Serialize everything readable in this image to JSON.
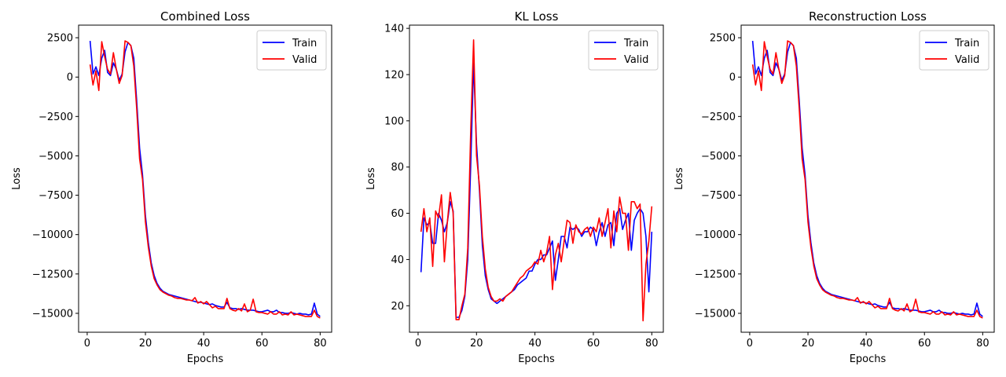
{
  "chart_data": [
    {
      "type": "line",
      "title": "Combined Loss",
      "xlabel": "Epochs",
      "ylabel": "Loss",
      "xlim": [
        -2.95,
        83.95
      ],
      "ylim": [
        -16200,
        3300
      ],
      "xticks": [
        0,
        20,
        40,
        60,
        80
      ],
      "yticks": [
        2500,
        0,
        -2500,
        -5000,
        -7500,
        -10000,
        -12500,
        -15000
      ],
      "ytick_labels": [
        "2500",
        "0",
        "−2500",
        "−5000",
        "−7500",
        "−10000",
        "−12500",
        "−15000"
      ],
      "legend": "top-right",
      "grid": false,
      "x": [
        1,
        2,
        3,
        4,
        5,
        6,
        7,
        8,
        9,
        10,
        11,
        12,
        13,
        14,
        15,
        16,
        17,
        18,
        19,
        20,
        21,
        22,
        23,
        24,
        25,
        26,
        27,
        28,
        29,
        30,
        31,
        32,
        33,
        34,
        35,
        36,
        37,
        38,
        39,
        40,
        41,
        42,
        43,
        44,
        45,
        46,
        47,
        48,
        49,
        50,
        51,
        52,
        53,
        54,
        55,
        56,
        57,
        58,
        59,
        60,
        61,
        62,
        63,
        64,
        65,
        66,
        67,
        68,
        69,
        70,
        71,
        72,
        73,
        74,
        75,
        76,
        77,
        78,
        79,
        80
      ],
      "series": [
        {
          "name": "Train",
          "color": "#0000ff",
          "values": [
            2300,
            200,
            650,
            100,
            1200,
            1700,
            300,
            100,
            900,
            500,
            -200,
            200,
            1600,
            2200,
            2000,
            1200,
            -1500,
            -4500,
            -6200,
            -8800,
            -10500,
            -11800,
            -12600,
            -13100,
            -13400,
            -13600,
            -13700,
            -13800,
            -13850,
            -13900,
            -13950,
            -14000,
            -14050,
            -14100,
            -14150,
            -14200,
            -14250,
            -14300,
            -14300,
            -14350,
            -14400,
            -14450,
            -14400,
            -14500,
            -14550,
            -14600,
            -14600,
            -14300,
            -14650,
            -14700,
            -14700,
            -14750,
            -14700,
            -14750,
            -14800,
            -14800,
            -14800,
            -14850,
            -14900,
            -14900,
            -14850,
            -14800,
            -14900,
            -14900,
            -14800,
            -14950,
            -14950,
            -15000,
            -15000,
            -14950,
            -15000,
            -15050,
            -15000,
            -15050,
            -15050,
            -15100,
            -15050,
            -14350,
            -15050,
            -15200
          ]
        },
        {
          "name": "Valid",
          "color": "#ff0000",
          "values": [
            800,
            -500,
            400,
            -850,
            2250,
            1300,
            500,
            200,
            1550,
            500,
            -400,
            100,
            2300,
            2200,
            2000,
            700,
            -2000,
            -5200,
            -6500,
            -9200,
            -10800,
            -12000,
            -12800,
            -13200,
            -13500,
            -13650,
            -13750,
            -13850,
            -13900,
            -14000,
            -14050,
            -14050,
            -14100,
            -14150,
            -14150,
            -14200,
            -14000,
            -14350,
            -14250,
            -14400,
            -14250,
            -14450,
            -14650,
            -14550,
            -14700,
            -14700,
            -14700,
            -14050,
            -14700,
            -14800,
            -14850,
            -14700,
            -14850,
            -14400,
            -14900,
            -14800,
            -14100,
            -14900,
            -14950,
            -14950,
            -15000,
            -15050,
            -14900,
            -15050,
            -15050,
            -14900,
            -15100,
            -15050,
            -15100,
            -14900,
            -15100,
            -15050,
            -15100,
            -15150,
            -15200,
            -15200,
            -15200,
            -14800,
            -15200,
            -15300
          ]
        }
      ]
    },
    {
      "type": "line",
      "title": "KL Loss",
      "xlabel": "Epochs",
      "ylabel": "Loss",
      "xlim": [
        -2.95,
        83.95
      ],
      "ylim": [
        8.54,
        141.4
      ],
      "xticks": [
        0,
        20,
        40,
        60,
        80
      ],
      "yticks": [
        20,
        40,
        60,
        80,
        100,
        120,
        140
      ],
      "ytick_labels": [
        "20",
        "40",
        "60",
        "80",
        "100",
        "120",
        "140"
      ],
      "legend": "top-right",
      "grid": false,
      "x": [
        1,
        2,
        3,
        4,
        5,
        6,
        7,
        8,
        9,
        10,
        11,
        12,
        13,
        14,
        15,
        16,
        17,
        18,
        19,
        20,
        21,
        22,
        23,
        24,
        25,
        26,
        27,
        28,
        29,
        30,
        31,
        32,
        33,
        34,
        35,
        36,
        37,
        38,
        39,
        40,
        41,
        42,
        43,
        44,
        45,
        46,
        47,
        48,
        49,
        50,
        51,
        52,
        53,
        54,
        55,
        56,
        57,
        58,
        59,
        60,
        61,
        62,
        63,
        64,
        65,
        66,
        67,
        68,
        69,
        70,
        71,
        72,
        73,
        74,
        75,
        76,
        77,
        78,
        79,
        80
      ],
      "series": [
        {
          "name": "Train",
          "color": "#0000ff",
          "values": [
            34.5,
            58,
            55,
            56,
            47,
            47,
            60,
            57,
            52,
            56,
            65,
            61,
            15,
            15,
            18,
            24,
            40,
            80,
            125,
            90,
            70,
            46,
            33,
            27,
            23,
            22,
            21,
            22,
            23,
            24,
            25,
            26,
            27,
            29,
            30,
            31,
            32,
            35,
            35,
            38,
            40,
            40,
            42,
            42,
            45,
            48,
            31,
            40,
            50,
            50,
            45,
            54,
            53,
            54,
            53,
            50,
            52,
            52,
            54,
            53,
            46,
            52,
            56,
            50,
            55,
            56,
            46,
            60,
            62,
            53,
            57,
            60,
            44,
            57,
            60,
            62,
            60,
            50,
            26,
            52
          ]
        },
        {
          "name": "Valid",
          "color": "#ff0000",
          "values": [
            52,
            62,
            52,
            58,
            37,
            61,
            58,
            68,
            39,
            56,
            69,
            60,
            14,
            14,
            20,
            25,
            45,
            95,
            135,
            85,
            72,
            50,
            36,
            28,
            24,
            22,
            22,
            23,
            22,
            24,
            25,
            26,
            28,
            30,
            32,
            33,
            35,
            36,
            37,
            39,
            38,
            44,
            39,
            43,
            50,
            27,
            42,
            47,
            39,
            48,
            57,
            56,
            47,
            55,
            52,
            51,
            53,
            54,
            50,
            54,
            52,
            58,
            50,
            56,
            62,
            45,
            61,
            52,
            67,
            60,
            60,
            44,
            65,
            65,
            62,
            64,
            13.5,
            38,
            48,
            63
          ]
        }
      ]
    },
    {
      "type": "line",
      "title": "Reconstruction Loss",
      "xlabel": "Epochs",
      "ylabel": "Loss",
      "xlim": [
        -2.95,
        83.95
      ],
      "ylim": [
        -16200,
        3300
      ],
      "xticks": [
        0,
        20,
        40,
        60,
        80
      ],
      "yticks": [
        2500,
        0,
        -2500,
        -5000,
        -7500,
        -10000,
        -12500,
        -15000
      ],
      "ytick_labels": [
        "2500",
        "0",
        "−2500",
        "−5000",
        "−7500",
        "−10000",
        "−12500",
        "−15000"
      ],
      "legend": "top-right",
      "grid": false,
      "x": [
        1,
        2,
        3,
        4,
        5,
        6,
        7,
        8,
        9,
        10,
        11,
        12,
        13,
        14,
        15,
        16,
        17,
        18,
        19,
        20,
        21,
        22,
        23,
        24,
        25,
        26,
        27,
        28,
        29,
        30,
        31,
        32,
        33,
        34,
        35,
        36,
        37,
        38,
        39,
        40,
        41,
        42,
        43,
        44,
        45,
        46,
        47,
        48,
        49,
        50,
        51,
        52,
        53,
        54,
        55,
        56,
        57,
        58,
        59,
        60,
        61,
        62,
        63,
        64,
        65,
        66,
        67,
        68,
        69,
        70,
        71,
        72,
        73,
        74,
        75,
        76,
        77,
        78,
        79,
        80
      ],
      "series": [
        {
          "name": "Train",
          "color": "#0000ff",
          "values": [
            2300,
            200,
            650,
            100,
            1200,
            1700,
            300,
            100,
            900,
            500,
            -200,
            200,
            1600,
            2200,
            2000,
            1200,
            -1500,
            -4500,
            -6200,
            -8800,
            -10500,
            -11800,
            -12600,
            -13100,
            -13400,
            -13600,
            -13700,
            -13800,
            -13850,
            -13900,
            -13950,
            -14000,
            -14050,
            -14100,
            -14150,
            -14200,
            -14250,
            -14300,
            -14300,
            -14350,
            -14400,
            -14450,
            -14400,
            -14500,
            -14550,
            -14600,
            -14600,
            -14300,
            -14650,
            -14700,
            -14700,
            -14750,
            -14700,
            -14750,
            -14800,
            -14800,
            -14800,
            -14850,
            -14900,
            -14900,
            -14850,
            -14800,
            -14900,
            -14900,
            -14800,
            -14950,
            -14950,
            -15000,
            -15000,
            -14950,
            -15000,
            -15050,
            -15000,
            -15050,
            -15050,
            -15100,
            -15050,
            -14350,
            -15050,
            -15200
          ]
        },
        {
          "name": "Valid",
          "color": "#ff0000",
          "values": [
            800,
            -500,
            400,
            -850,
            2250,
            1300,
            500,
            200,
            1550,
            500,
            -400,
            100,
            2300,
            2200,
            2000,
            700,
            -2000,
            -5200,
            -6500,
            -9200,
            -10800,
            -12000,
            -12800,
            -13200,
            -13500,
            -13650,
            -13750,
            -13850,
            -13900,
            -14000,
            -14050,
            -14050,
            -14100,
            -14150,
            -14150,
            -14200,
            -14000,
            -14350,
            -14250,
            -14400,
            -14250,
            -14450,
            -14650,
            -14550,
            -14700,
            -14700,
            -14700,
            -14050,
            -14700,
            -14800,
            -14850,
            -14700,
            -14850,
            -14400,
            -14900,
            -14800,
            -14100,
            -14900,
            -14950,
            -14950,
            -15000,
            -15050,
            -14900,
            -15050,
            -15050,
            -14900,
            -15100,
            -15050,
            -15100,
            -14900,
            -15100,
            -15050,
            -15100,
            -15150,
            -15200,
            -15200,
            -15200,
            -14800,
            -15200,
            -15300
          ]
        }
      ]
    }
  ]
}
